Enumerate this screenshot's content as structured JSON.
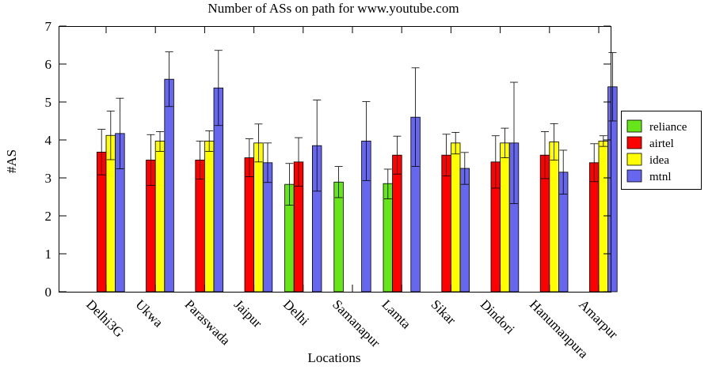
{
  "chart_data": {
    "type": "bar",
    "title": "Number of ASs on path for www.youtube.com",
    "xlabel": "Locations",
    "ylabel": "#AS",
    "ylim": [
      0,
      7
    ],
    "yticks": [
      "0",
      "1",
      "2",
      "3",
      "4",
      "5",
      "6",
      "7"
    ],
    "categories": [
      "Delhi3G",
      "Ukwa",
      "Paraswada",
      "Jaipur",
      "Delhi",
      "Samanapur",
      "Lamta",
      "Sikar",
      "Dindori",
      "Hanumanpura",
      "Amarpur"
    ],
    "legend_position": "right",
    "grid": false,
    "series": [
      {
        "name": "reliance",
        "color": "#66e619",
        "values": [
          null,
          null,
          null,
          null,
          2.83,
          2.89,
          2.85,
          null,
          null,
          null,
          null
        ],
        "err_low": [
          null,
          null,
          null,
          null,
          2.28,
          2.48,
          2.45,
          null,
          null,
          null,
          null
        ],
        "err_high": [
          null,
          null,
          null,
          null,
          3.38,
          3.3,
          3.23,
          null,
          null,
          null,
          null
        ]
      },
      {
        "name": "airtel",
        "color": "#ff0000",
        "values": [
          3.68,
          3.47,
          3.47,
          3.53,
          3.42,
          null,
          3.6,
          3.6,
          3.42,
          3.6,
          3.4
        ],
        "err_low": [
          3.08,
          2.8,
          2.97,
          3.03,
          2.78,
          null,
          3.1,
          3.05,
          2.73,
          2.98,
          2.9
        ],
        "err_high": [
          4.28,
          4.14,
          3.97,
          4.03,
          4.06,
          null,
          4.1,
          4.15,
          4.11,
          4.22,
          3.9
        ]
      },
      {
        "name": "idea",
        "color": "#ffff00",
        "values": [
          4.12,
          3.97,
          3.97,
          3.92,
          null,
          null,
          null,
          3.92,
          3.92,
          3.95,
          3.97
        ],
        "err_low": [
          3.48,
          3.7,
          3.7,
          3.42,
          null,
          null,
          null,
          3.63,
          3.53,
          3.47,
          3.83
        ],
        "err_high": [
          4.76,
          4.22,
          4.24,
          4.42,
          null,
          null,
          null,
          4.2,
          4.31,
          4.43,
          4.11
        ]
      },
      {
        "name": "mtnl",
        "color": "#6666ee",
        "values": [
          4.17,
          5.6,
          5.37,
          3.4,
          3.85,
          3.97,
          4.6,
          3.25,
          3.92,
          3.15,
          5.4
        ],
        "err_low": [
          3.24,
          4.88,
          4.38,
          2.88,
          2.65,
          2.93,
          3.3,
          2.83,
          2.32,
          2.57,
          4.5
        ],
        "err_high": [
          5.1,
          6.32,
          6.36,
          3.92,
          5.05,
          5.01,
          5.9,
          3.67,
          5.52,
          3.73,
          6.3
        ]
      }
    ]
  }
}
